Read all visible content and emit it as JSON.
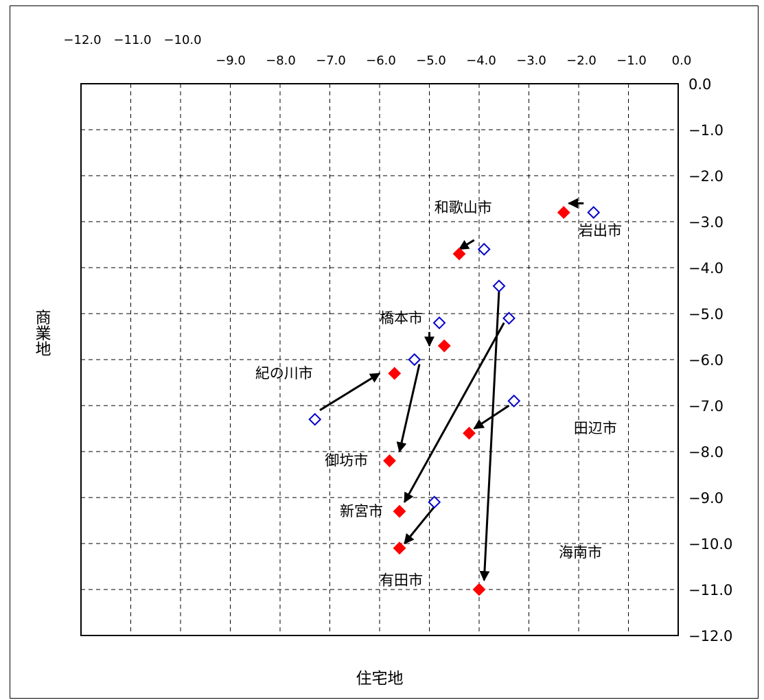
{
  "chart_data": {
    "type": "scatter",
    "xlabel": "住宅地",
    "ylabel": "商業地",
    "xlim": [
      -12.0,
      0.0
    ],
    "ylim": [
      -12.0,
      0.0
    ],
    "grid": true,
    "x_ticks_top_row": [
      "−12.0",
      "−11.0",
      "−10.0"
    ],
    "x_ticks": [
      "−9.0",
      "−8.0",
      "−7.0",
      "−6.0",
      "−5.0",
      "−4.0",
      "−3.0",
      "−2.0",
      "−1.0",
      "0.0"
    ],
    "y_ticks": [
      "0.0",
      "−1.0",
      "−2.0",
      "−3.0",
      "−4.0",
      "−5.0",
      "−6.0",
      "−7.0",
      "−8.0",
      "−9.0",
      "−10.0",
      "−11.0",
      "−12.0"
    ],
    "series": [
      {
        "marker": "hollow-diamond",
        "color": "#0000cc",
        "points": [
          {
            "x": -1.7,
            "y": -2.8
          },
          {
            "x": -3.9,
            "y": -3.6
          },
          {
            "x": -3.6,
            "y": -4.4
          },
          {
            "x": -3.4,
            "y": -5.1
          },
          {
            "x": -4.8,
            "y": -5.2
          },
          {
            "x": -5.3,
            "y": -6.0
          },
          {
            "x": -3.3,
            "y": -6.9
          },
          {
            "x": -7.3,
            "y": -7.3
          },
          {
            "x": -4.9,
            "y": -9.1
          }
        ]
      },
      {
        "marker": "filled-diamond",
        "color": "#ff0000",
        "points": [
          {
            "x": -2.3,
            "y": -2.8
          },
          {
            "x": -4.4,
            "y": -3.7
          },
          {
            "x": -4.7,
            "y": -5.7
          },
          {
            "x": -5.7,
            "y": -6.3
          },
          {
            "x": -4.2,
            "y": -7.6
          },
          {
            "x": -5.8,
            "y": -8.2
          },
          {
            "x": -5.6,
            "y": -9.3
          },
          {
            "x": -5.6,
            "y": -10.1
          },
          {
            "x": -4.0,
            "y": -11.0
          }
        ]
      }
    ],
    "arrows": [
      {
        "from": [
          -1.9,
          -2.6
        ],
        "to": [
          -2.2,
          -2.6
        ]
      },
      {
        "from": [
          -4.1,
          -3.4
        ],
        "to": [
          -4.4,
          -3.6
        ]
      },
      {
        "from": [
          -3.6,
          -4.5
        ],
        "to": [
          -3.9,
          -10.8
        ]
      },
      {
        "from": [
          -3.5,
          -5.2
        ],
        "to": [
          -5.5,
          -9.1
        ]
      },
      {
        "from": [
          -5.0,
          -5.4
        ],
        "to": [
          -5.0,
          -5.7
        ]
      },
      {
        "from": [
          -5.2,
          -6.1
        ],
        "to": [
          -5.6,
          -8.0
        ]
      },
      {
        "from": [
          -3.4,
          -7.0
        ],
        "to": [
          -4.1,
          -7.5
        ]
      },
      {
        "from": [
          -7.2,
          -7.1
        ],
        "to": [
          -6.0,
          -6.3
        ]
      },
      {
        "from": [
          -4.9,
          -9.2
        ],
        "to": [
          -5.5,
          -10.0
        ]
      }
    ],
    "annotations": [
      {
        "text": "岩出市",
        "x": -2.0,
        "y": -3.3
      },
      {
        "text": "和歌山市",
        "x": -4.9,
        "y": -2.8
      },
      {
        "text": "橋本市",
        "x": -6.0,
        "y": -5.2
      },
      {
        "text": "紀の川市",
        "x": -8.5,
        "y": -6.4
      },
      {
        "text": "田辺市",
        "x": -2.1,
        "y": -7.6
      },
      {
        "text": "御坊市",
        "x": -7.1,
        "y": -8.3
      },
      {
        "text": "新宮市",
        "x": -6.8,
        "y": -9.4
      },
      {
        "text": "海南市",
        "x": -2.4,
        "y": -10.3
      },
      {
        "text": "有田市",
        "x": -6.0,
        "y": -10.9
      }
    ]
  }
}
